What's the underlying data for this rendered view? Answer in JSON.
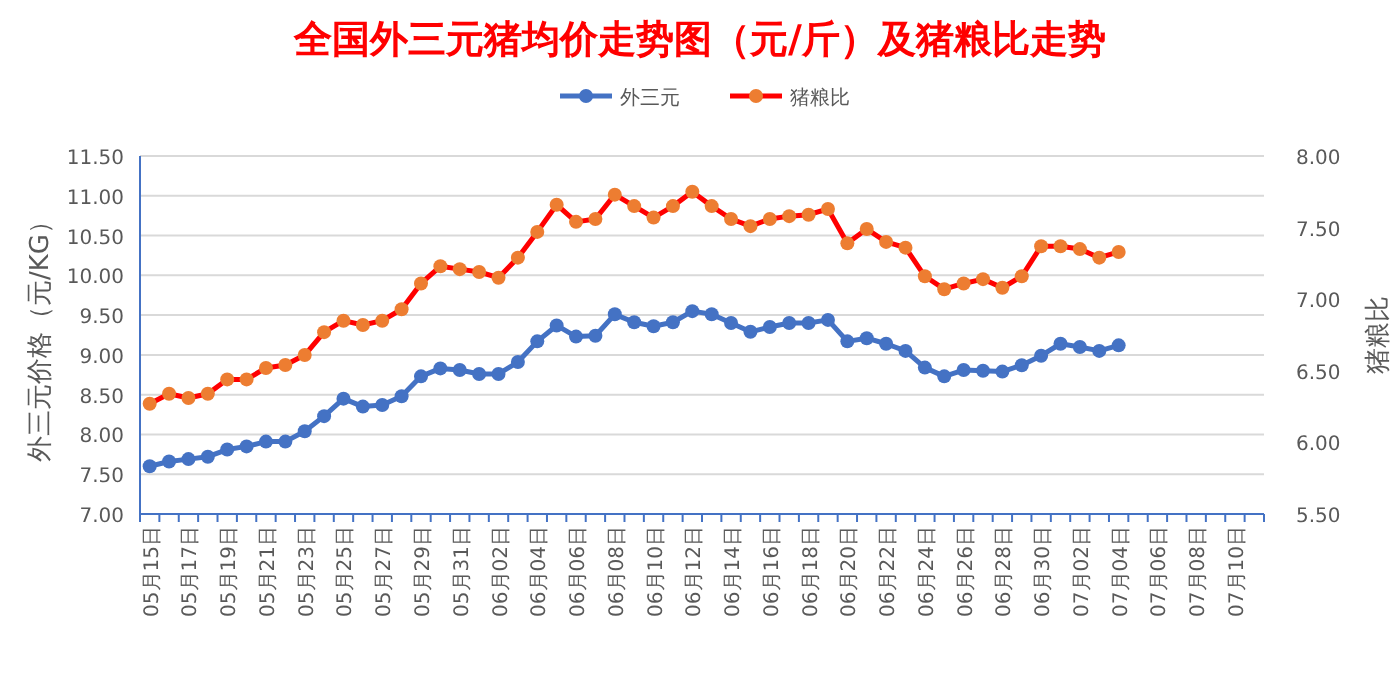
{
  "chart_data": {
    "type": "line",
    "title": "全国外三元猪均价走势图（元/斤）及猪粮比走势",
    "ylabel": "外三元价格（元/KG）",
    "y2label": "猪粮比",
    "categories": [
      "05月15日",
      null,
      "05月17日",
      null,
      "05月19日",
      null,
      "05月21日",
      null,
      "05月23日",
      null,
      "05月25日",
      null,
      "05月27日",
      null,
      "05月29日",
      null,
      "05月31日",
      null,
      "06月02日",
      null,
      "06月04日",
      null,
      "06月06日",
      null,
      "06月08日",
      null,
      "06月10日",
      null,
      "06月12日",
      null,
      "06月14日",
      null,
      "06月16日",
      null,
      "06月18日",
      null,
      "06月20日",
      null,
      "06月22日",
      null,
      "06月24日",
      null,
      "06月26日",
      null,
      "06月28日",
      null,
      "06月30日",
      null,
      "07月02日",
      null,
      "07月04日",
      null,
      "07月06日",
      null,
      "07月08日",
      null,
      "07月10日",
      null
    ],
    "series": [
      {
        "name": "外三元",
        "color": "#4472c4",
        "values": [
          7.6,
          7.66,
          7.69,
          7.72,
          7.81,
          7.85,
          7.91,
          7.91,
          8.04,
          8.23,
          8.45,
          8.35,
          8.37,
          8.48,
          8.73,
          8.83,
          8.81,
          8.76,
          8.76,
          8.91,
          9.17,
          9.37,
          9.23,
          9.24,
          9.51,
          9.41,
          9.36,
          9.41,
          9.55,
          9.51,
          9.4,
          9.29,
          9.35,
          9.4,
          9.4,
          9.44,
          9.17,
          9.21,
          9.14,
          9.05,
          8.84,
          8.73,
          8.81,
          8.8,
          8.79,
          8.87,
          8.99,
          9.14,
          9.1,
          9.05,
          9.12,
          null,
          null,
          null,
          null,
          null,
          null,
          null
        ]
      },
      {
        "name": "猪粮比",
        "color": "#ff0000",
        "axis": "y2",
        "colors": [
          "#ed7d31",
          "#ed7d31",
          "#ed7d31",
          "#ed7d31",
          "#ed7d31",
          "#ed7d31",
          "#ed7d31",
          "#ed7d31",
          "#ed7d31",
          "#ed7d31",
          "#ed7d31",
          "#ed7d31",
          "#ed7d31",
          "#ed7d31",
          "#ed7d31",
          "#ed7d31",
          "#ed7d31",
          "#ed7d31",
          "#ed7d31",
          "#ed7d31",
          "#ed7d31",
          "#ed7d31",
          "#ed7d31",
          "#ed7d31",
          "#ed7d31",
          "#ed7d31",
          "#ed7d31",
          "#ed7d31",
          "#ed7d31",
          "#ed7d31",
          "#ed7d31",
          "#ed7d31",
          "#ed7d31",
          "#ed7d31",
          "#ed7d31",
          "#ed7d31",
          "#ed7d31",
          "#ed7d31",
          "#ed7d31",
          "#ed7d31",
          "#ed7d31",
          "#ed7d31",
          "#ed7d31",
          "#ed7d31",
          "#ed7d31",
          "#ed7d31",
          "#ed7d31",
          "#ed7d31",
          "#ed7d31",
          "#ed7d31",
          "#ed7d31",
          null,
          null,
          null,
          null,
          null,
          null,
          null
        ],
        "values": [
          6.27,
          6.34,
          6.31,
          6.34,
          6.44,
          6.44,
          6.52,
          6.54,
          6.61,
          6.77,
          6.85,
          6.82,
          6.85,
          6.93,
          7.11,
          7.23,
          7.21,
          7.19,
          7.15,
          7.29,
          7.47,
          7.66,
          7.54,
          7.56,
          7.73,
          7.65,
          7.57,
          7.65,
          7.75,
          7.65,
          7.56,
          7.51,
          7.56,
          7.58,
          7.59,
          7.63,
          7.39,
          7.49,
          7.4,
          7.36,
          7.16,
          7.07,
          7.11,
          7.14,
          7.08,
          7.16,
          7.37,
          7.37,
          7.35,
          7.29,
          7.33,
          null,
          null,
          null,
          null,
          null,
          null,
          null
        ]
      }
    ],
    "ylim": [
      7,
      11.5
    ],
    "yticks": [
      {
        "value": 7,
        "label": "7.00"
      },
      {
        "value": 7.5,
        "label": "7.50"
      },
      {
        "value": 8,
        "label": "8.00"
      },
      {
        "value": 8.5,
        "label": "8.50"
      },
      {
        "value": 9,
        "label": "9.00"
      },
      {
        "value": 9.5,
        "label": "9.50"
      },
      {
        "value": 10,
        "label": "10.00"
      },
      {
        "value": 10.5,
        "label": "10.50"
      },
      {
        "value": 11,
        "label": "11.00"
      },
      {
        "value": 11.5,
        "label": "11.50"
      }
    ],
    "y2lim": [
      5.5,
      8
    ],
    "y2ticks": [
      {
        "value": 5.5,
        "label": "5.50"
      },
      {
        "value": 6,
        "label": "6.00"
      },
      {
        "value": 6.5,
        "label": "6.50"
      },
      {
        "value": 7,
        "label": "7.00"
      },
      {
        "value": 7.5,
        "label": "7.50"
      },
      {
        "value": 8,
        "label": "8.00"
      }
    ],
    "grid": "y",
    "legend": "top",
    "marker": "circle"
  }
}
